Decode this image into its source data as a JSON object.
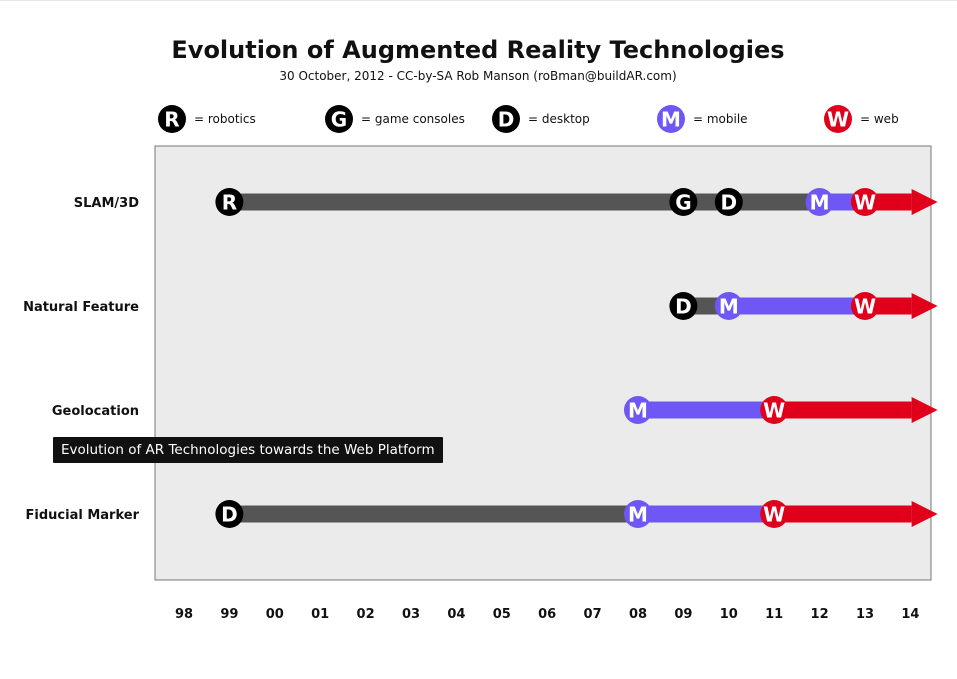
{
  "tooltip": "Evolution of AR Technologies towards the Web Platform",
  "chart_data": {
    "type": "timeline",
    "title": "Evolution of Augmented Reality Technologies",
    "subtitle": "30 October, 2012 - CC-by-SA Rob Manson (roBman@buildAR.com)",
    "x_ticks": [
      "98",
      "99",
      "00",
      "01",
      "02",
      "03",
      "04",
      "05",
      "06",
      "07",
      "08",
      "09",
      "10",
      "11",
      "12",
      "13",
      "14"
    ],
    "legend": [
      {
        "letter": "R",
        "label": "= robotics",
        "platform": "robotics"
      },
      {
        "letter": "G",
        "label": "= game consoles",
        "platform": "game-consoles"
      },
      {
        "letter": "D",
        "label": "= desktop",
        "platform": "desktop"
      },
      {
        "letter": "M",
        "label": "= mobile",
        "platform": "mobile"
      },
      {
        "letter": "W",
        "label": "= web",
        "platform": "web"
      }
    ],
    "platform_colors": {
      "robotics": "#000000",
      "game-consoles": "#000000",
      "desktop": "#000000",
      "mobile": "#6e57f5",
      "web": "#e0001b"
    },
    "bar_colors": {
      "gray": "#555555",
      "mobile": "#6e57f5",
      "web": "#e0001b"
    },
    "plot_background": "#ebebeb",
    "rows": [
      {
        "label": "SLAM/3D",
        "segments": [
          {
            "from": 1,
            "to": 14,
            "color": "gray"
          },
          {
            "from": 14,
            "to": 15,
            "color": "mobile"
          },
          {
            "from": 15,
            "to": 16.6,
            "color": "web",
            "arrow": true
          }
        ],
        "markers": [
          {
            "letter": "R",
            "x": 1,
            "platform": "robotics"
          },
          {
            "letter": "G",
            "x": 11,
            "platform": "game-consoles"
          },
          {
            "letter": "D",
            "x": 12,
            "platform": "desktop"
          },
          {
            "letter": "M",
            "x": 14,
            "platform": "mobile"
          },
          {
            "letter": "W",
            "x": 15,
            "platform": "web"
          }
        ]
      },
      {
        "label": "Natural Feature",
        "segments": [
          {
            "from": 11,
            "to": 12,
            "color": "gray"
          },
          {
            "from": 12,
            "to": 15,
            "color": "mobile"
          },
          {
            "from": 15,
            "to": 16.6,
            "color": "web",
            "arrow": true
          }
        ],
        "markers": [
          {
            "letter": "D",
            "x": 11,
            "platform": "desktop"
          },
          {
            "letter": "M",
            "x": 12,
            "platform": "mobile"
          },
          {
            "letter": "W",
            "x": 15,
            "platform": "web"
          }
        ]
      },
      {
        "label": "Geolocation",
        "segments": [
          {
            "from": 10,
            "to": 13,
            "color": "mobile"
          },
          {
            "from": 13,
            "to": 16.6,
            "color": "web",
            "arrow": true
          }
        ],
        "markers": [
          {
            "letter": "M",
            "x": 10,
            "platform": "mobile"
          },
          {
            "letter": "W",
            "x": 13,
            "platform": "web"
          }
        ]
      },
      {
        "label": "Fiducial Marker",
        "segments": [
          {
            "from": 1,
            "to": 10,
            "color": "gray"
          },
          {
            "from": 10,
            "to": 13,
            "color": "mobile"
          },
          {
            "from": 13,
            "to": 16.6,
            "color": "web",
            "arrow": true
          }
        ],
        "markers": [
          {
            "letter": "D",
            "x": 1,
            "platform": "desktop"
          },
          {
            "letter": "M",
            "x": 10,
            "platform": "mobile"
          },
          {
            "letter": "W",
            "x": 13,
            "platform": "web"
          }
        ]
      }
    ]
  }
}
